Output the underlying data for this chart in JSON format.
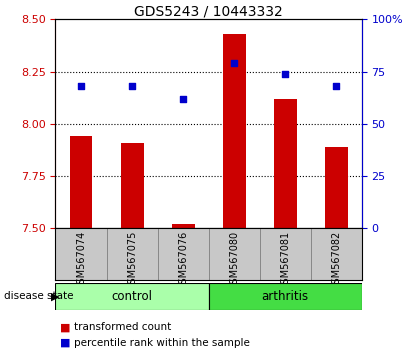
{
  "title": "GDS5243 / 10443332",
  "samples": [
    "GSM567074",
    "GSM567075",
    "GSM567076",
    "GSM567080",
    "GSM567081",
    "GSM567082"
  ],
  "red_values": [
    7.94,
    7.91,
    7.52,
    8.43,
    8.12,
    7.89
  ],
  "blue_values": [
    68.0,
    68.0,
    62.0,
    79.0,
    74.0,
    68.0
  ],
  "ylim_left": [
    7.5,
    8.5
  ],
  "ylim_right": [
    0,
    100
  ],
  "yticks_left": [
    7.5,
    7.75,
    8.0,
    8.25,
    8.5
  ],
  "yticks_right": [
    0,
    25,
    50,
    75,
    100
  ],
  "hlines": [
    7.75,
    8.0,
    8.25
  ],
  "control_color": "#AAFFAA",
  "arthritis_color": "#44DD44",
  "bar_color": "#CC0000",
  "dot_color": "#0000CC",
  "bar_width": 0.45,
  "disease_label": "disease state",
  "legend_red": "transformed count",
  "legend_blue": "percentile rank within the sample",
  "bg_color": "#C8C8C8",
  "title_fontsize": 10,
  "tick_fontsize": 8,
  "sample_fontsize": 7
}
